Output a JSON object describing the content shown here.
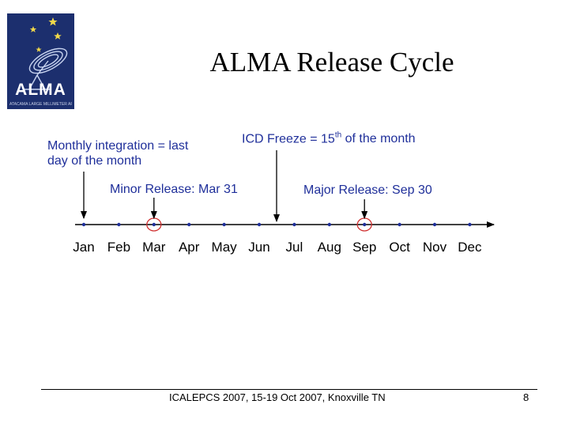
{
  "logo": {
    "text": "ALMA",
    "subtitle": "ATACAMA LARGE MILLIMETER ARRAY"
  },
  "title": "ALMA Release Cycle",
  "annotations": {
    "monthly_integration": "Monthly integration = last\nday of the month",
    "icd_freeze": {
      "prefix": "ICD Freeze = 15",
      "superscript": "th",
      "suffix": " of the month"
    },
    "minor_release": "Minor Release: Mar 31",
    "major_release": "Major Release: Sep 30"
  },
  "timeline": {
    "months": [
      "Jan",
      "Feb",
      "Mar",
      "Apr",
      "May",
      "Jun",
      "Jul",
      "Aug",
      "Sep",
      "Oct",
      "Nov",
      "Dec"
    ],
    "monthly_integration_month": "Jan",
    "minor_release_month": "Mar",
    "icd_freeze_month": "Jun",
    "major_release_month": "Sep"
  },
  "footer": {
    "text": "ICALEPCS 2007, 15-19 Oct 2007, Knoxville TN",
    "page_number": "8"
  },
  "colors": {
    "annotation_text": "#1f2f9a",
    "release_circle": "#d03030",
    "logo_background": "#1c2f6e",
    "dots": "#1f2f9a"
  }
}
